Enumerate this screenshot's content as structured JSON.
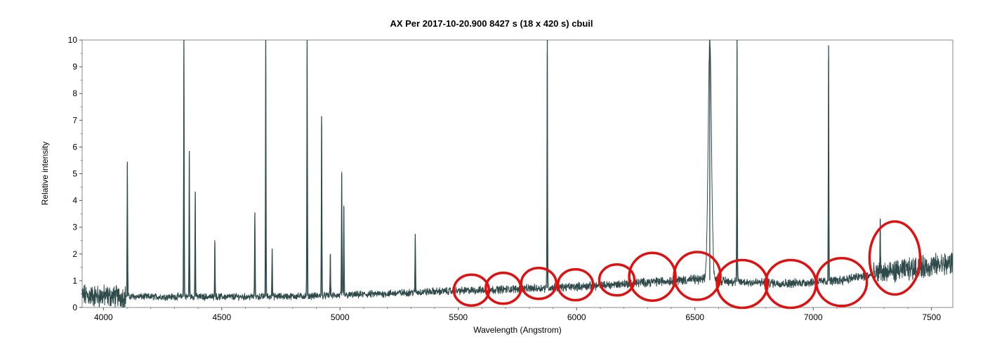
{
  "chart_data": {
    "type": "line",
    "title": "AX Per   2017-10-20.900   8427 s (18 x 420 s)   cbuil",
    "xlabel": "Wavelength (Angstrom)",
    "ylabel": "Relative intensity",
    "xlim": [
      3910,
      7590
    ],
    "ylim": [
      0,
      10
    ],
    "xticks": [
      4000,
      4500,
      5000,
      5500,
      6000,
      6500,
      7000,
      7500
    ],
    "yticks": [
      0,
      1,
      2,
      3,
      4,
      5,
      6,
      7,
      8,
      9,
      10
    ],
    "grid": false,
    "legend": "none",
    "line_color": "#2f4a4a",
    "continuum": [
      [
        3910,
        0.45
      ],
      [
        4000,
        0.42
      ],
      [
        4200,
        0.4
      ],
      [
        4400,
        0.4
      ],
      [
        4600,
        0.4
      ],
      [
        4800,
        0.42
      ],
      [
        5000,
        0.45
      ],
      [
        5200,
        0.52
      ],
      [
        5400,
        0.6
      ],
      [
        5500,
        0.62
      ],
      [
        5700,
        0.68
      ],
      [
        5900,
        0.74
      ],
      [
        6100,
        0.82
      ],
      [
        6300,
        0.95
      ],
      [
        6500,
        1.05
      ],
      [
        6700,
        0.95
      ],
      [
        6900,
        0.9
      ],
      [
        7100,
        1.0
      ],
      [
        7300,
        1.3
      ],
      [
        7500,
        1.55
      ],
      [
        7590,
        1.65
      ]
    ],
    "emission_lines": [
      {
        "x": 4101,
        "y": 5.45
      },
      {
        "x": 4340,
        "y": 10.0
      },
      {
        "x": 4363,
        "y": 5.85
      },
      {
        "x": 4388,
        "y": 4.3
      },
      {
        "x": 4471,
        "y": 2.45
      },
      {
        "x": 4640,
        "y": 3.55
      },
      {
        "x": 4686,
        "y": 10.0
      },
      {
        "x": 4713,
        "y": 2.2
      },
      {
        "x": 4861,
        "y": 10.0
      },
      {
        "x": 4922,
        "y": 7.15
      },
      {
        "x": 4959,
        "y": 2.0
      },
      {
        "x": 5007,
        "y": 5.0
      },
      {
        "x": 5016,
        "y": 3.75
      },
      {
        "x": 5318,
        "y": 2.75
      },
      {
        "x": 5876,
        "y": 10.0
      },
      {
        "x": 6563,
        "y": 10.0
      },
      {
        "x": 6678,
        "y": 10.0
      },
      {
        "x": 7065,
        "y": 9.8
      },
      {
        "x": 7283,
        "y": 3.3
      }
    ],
    "annotations": {
      "type": "red-ellipse-highlights",
      "color": "#e01010",
      "centers": [
        {
          "x": 5555,
          "y": 0.65
        },
        {
          "x": 5690,
          "y": 0.72
        },
        {
          "x": 5840,
          "y": 0.9
        },
        {
          "x": 5995,
          "y": 0.85
        },
        {
          "x": 6170,
          "y": 1.03
        },
        {
          "x": 6320,
          "y": 1.15
        },
        {
          "x": 6510,
          "y": 1.18
        },
        {
          "x": 6700,
          "y": 0.88
        },
        {
          "x": 6905,
          "y": 0.88
        },
        {
          "x": 7120,
          "y": 0.95
        },
        {
          "x": 7345,
          "y": 1.85
        }
      ]
    }
  }
}
